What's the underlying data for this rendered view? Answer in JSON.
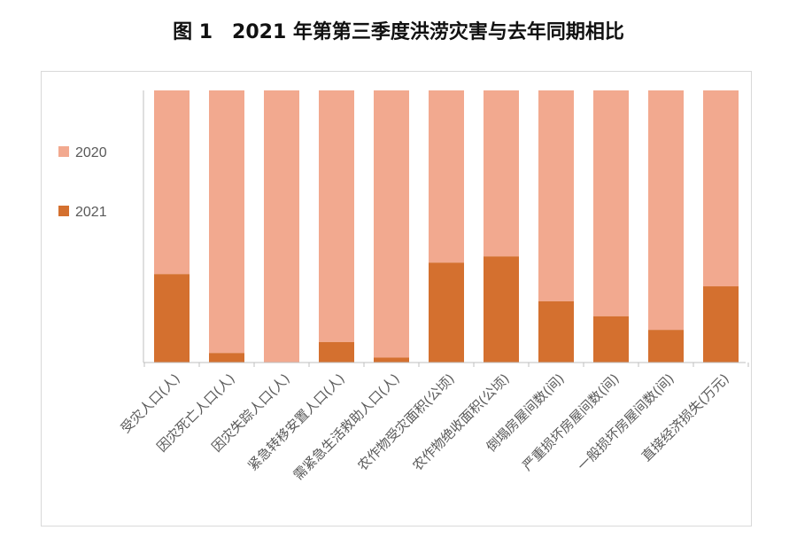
{
  "title": "图 1　2021 年第第三季度洪涝灾害与去年同期相比",
  "colors": {
    "s2020": "#f2a98f",
    "s2021": "#d4702f",
    "axis": "#bfbfbf"
  },
  "chart_data": {
    "type": "bar",
    "stacked": "percent",
    "categories": [
      "受灾人口(人)",
      "因灾死亡人口(人)",
      "因灾失踪人口(人)",
      "紧急转移安置人口(人)",
      "需紧急生活救助人口(人)",
      "农作物受灾面积(公顷)",
      "农作物绝收面积(公顷)",
      "倒塌房屋间数(间)",
      "严重损坏房屋间数(间)",
      "一般损坏房屋间数(间)",
      "直接经济损失(万元)"
    ],
    "series": [
      {
        "name": "2021",
        "values": [
          0.325,
          0.035,
          0.0,
          0.075,
          0.018,
          0.367,
          0.39,
          0.225,
          0.17,
          0.12,
          0.28
        ]
      },
      {
        "name": "2020",
        "values": [
          0.675,
          0.965,
          1.0,
          0.925,
          0.982,
          0.633,
          0.61,
          0.775,
          0.83,
          0.88,
          0.72
        ]
      }
    ],
    "ylim": [
      0,
      1
    ],
    "legend_position": "left",
    "grid": false
  }
}
